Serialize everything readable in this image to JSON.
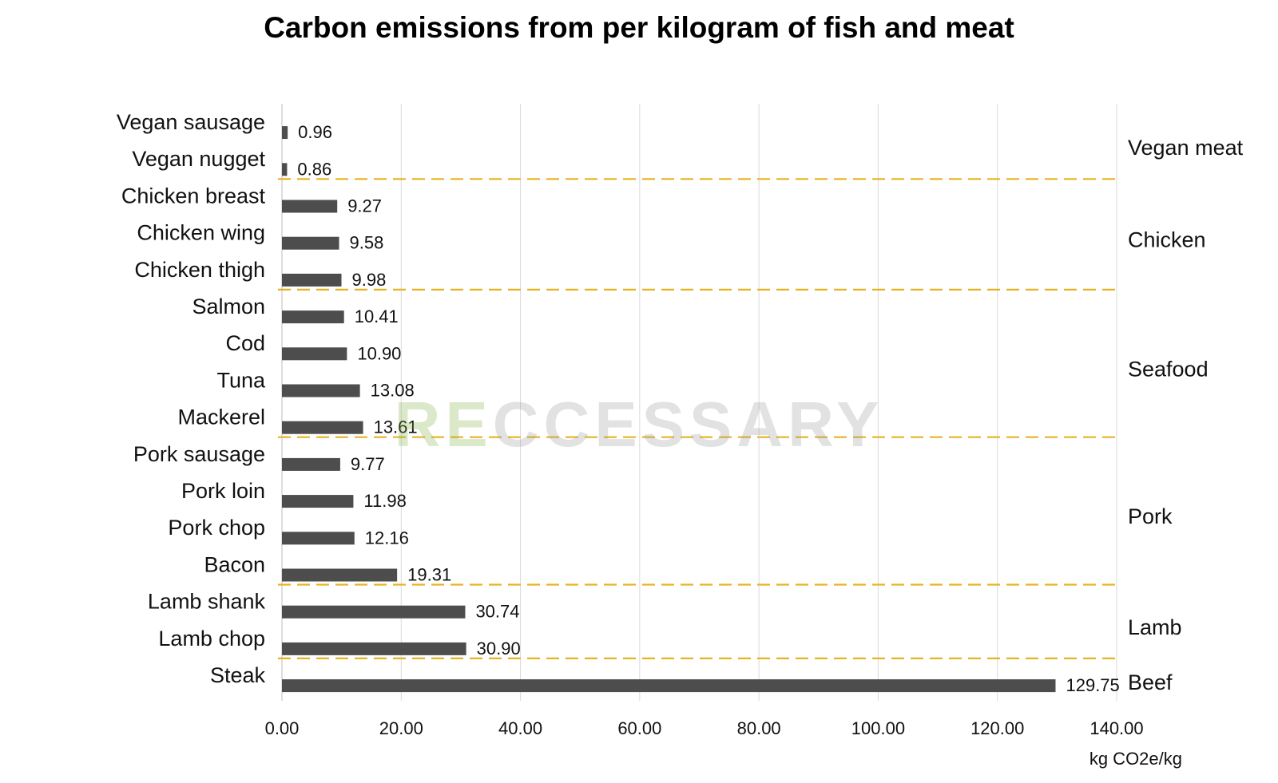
{
  "chart_data": {
    "type": "bar",
    "orientation": "horizontal",
    "title": "Carbon emissions from per kilogram of fish and meat",
    "xlabel": "kg CO2e/kg",
    "xlim": [
      0,
      140
    ],
    "x_ticks": [
      "0.00",
      "20.00",
      "40.00",
      "60.00",
      "80.00",
      "100.00",
      "120.00",
      "140.00"
    ],
    "x_tick_values": [
      0,
      20,
      40,
      60,
      80,
      100,
      120,
      140
    ],
    "grid": "vertical",
    "bar_color": "#4d4d4d",
    "separator_color": "#e6b422",
    "categories": [
      "Vegan sausage",
      "Vegan nugget",
      "Chicken breast",
      "Chicken wing",
      "Chicken thigh",
      "Salmon",
      "Cod",
      "Tuna",
      "Mackerel",
      "Pork sausage",
      "Pork loin",
      "Pork chop",
      "Bacon",
      "Lamb shank",
      "Lamb chop",
      "Steak"
    ],
    "values": [
      0.96,
      0.86,
      9.27,
      9.58,
      9.98,
      10.41,
      10.9,
      13.08,
      13.61,
      9.77,
      11.98,
      12.16,
      19.31,
      30.74,
      30.9,
      129.75
    ],
    "value_labels": [
      "0.96",
      "0.86",
      "9.27",
      "9.58",
      "9.98",
      "10.41",
      "10.90",
      "13.08",
      "13.61",
      "9.77",
      "11.98",
      "12.16",
      "19.31",
      "30.74",
      "30.90",
      "129.75"
    ],
    "groups": [
      {
        "name": "Vegan meat",
        "start": 0,
        "end": 1
      },
      {
        "name": "Chicken",
        "start": 2,
        "end": 4
      },
      {
        "name": "Seafood",
        "start": 5,
        "end": 8
      },
      {
        "name": "Pork",
        "start": 9,
        "end": 12
      },
      {
        "name": "Lamb",
        "start": 13,
        "end": 14
      },
      {
        "name": "Beef",
        "start": 15,
        "end": 15
      }
    ]
  },
  "watermark": {
    "prefix": "RE",
    "rest": "CCESSARY"
  }
}
